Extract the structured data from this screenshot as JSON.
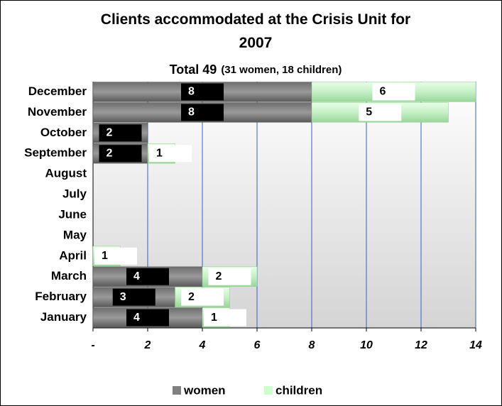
{
  "chart_data": {
    "type": "stacked_bar_horizontal",
    "title": "Clients accommodated at the Crisis Unit for 2007",
    "subtitle": "Total 49",
    "subtitle_note": "(31 women, 18 children)",
    "categories": [
      "January",
      "February",
      "March",
      "April",
      "May",
      "June",
      "July",
      "August",
      "September",
      "October",
      "November",
      "December"
    ],
    "series": [
      {
        "name": "women",
        "color": "#808080",
        "values": [
          4,
          3,
          4,
          0,
          0,
          0,
          0,
          0,
          2,
          2,
          8,
          8
        ]
      },
      {
        "name": "children",
        "color": "#ccffcc",
        "values": [
          1,
          2,
          2,
          1,
          0,
          0,
          0,
          0,
          1,
          0,
          5,
          6
        ]
      }
    ],
    "xlim": [
      0,
      14
    ],
    "xticks": [
      {
        "value": 0,
        "label": "-"
      },
      2,
      4,
      6,
      8,
      10,
      12,
      14
    ],
    "grid": true,
    "legend": "bottom"
  }
}
